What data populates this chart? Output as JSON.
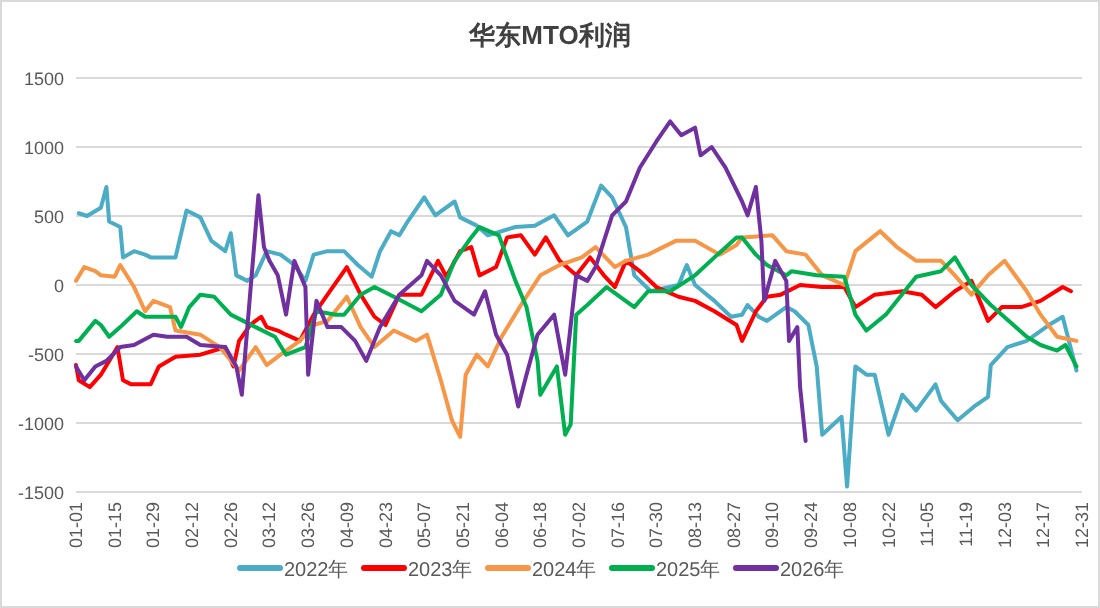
{
  "chart_data": {
    "type": "line",
    "title": "华东MTO利润",
    "grid": "y",
    "legend": "bottom",
    "xlim": [
      "--01-01",
      "--12-31"
    ],
    "xticks": [
      {
        "value": "--01-01",
        "label": "01-01"
      },
      {
        "value": "--01-15",
        "label": "01-15"
      },
      {
        "value": "--01-29",
        "label": "01-29"
      },
      {
        "value": "--02-12",
        "label": "02-12"
      },
      {
        "value": "--02-26",
        "label": "02-26"
      },
      {
        "value": "--03-12",
        "label": "03-12"
      },
      {
        "value": "--03-26",
        "label": "03-26"
      },
      {
        "value": "--04-09",
        "label": "04-09"
      },
      {
        "value": "--04-23",
        "label": "04-23"
      },
      {
        "value": "--05-07",
        "label": "05-07"
      },
      {
        "value": "--05-21",
        "label": "05-21"
      },
      {
        "value": "--06-04",
        "label": "06-04"
      },
      {
        "value": "--06-18",
        "label": "06-18"
      },
      {
        "value": "--07-02",
        "label": "07-02"
      },
      {
        "value": "--07-16",
        "label": "07-16"
      },
      {
        "value": "--07-30",
        "label": "07-30"
      },
      {
        "value": "--08-13",
        "label": "08-13"
      },
      {
        "value": "--08-27",
        "label": "08-27"
      },
      {
        "value": "--09-10",
        "label": "09-10"
      },
      {
        "value": "--09-24",
        "label": "09-24"
      },
      {
        "value": "--10-08",
        "label": "10-08"
      },
      {
        "value": "--10-22",
        "label": "10-22"
      },
      {
        "value": "--11-05",
        "label": "11-05"
      },
      {
        "value": "--11-19",
        "label": "11-19"
      },
      {
        "value": "--12-03",
        "label": "12-03"
      },
      {
        "value": "--12-17",
        "label": "12-17"
      },
      {
        "value": "--12-31",
        "label": "12-31"
      }
    ],
    "ylim": [
      -1500,
      1500
    ],
    "yticks": [
      -1500,
      -1000,
      -500,
      0,
      500,
      1000,
      1500
    ],
    "series": [
      {
        "name": "2022年",
        "color": "#4bacc6",
        "x": [
          "--01-02",
          "--01-05",
          "--01-10",
          "--01-12",
          "--01-13",
          "--01-17",
          "--01-18",
          "--01-22",
          "--01-26",
          "--01-28",
          "--02-06",
          "--02-10",
          "--02-15",
          "--02-19",
          "--02-24",
          "--02-26",
          "--02-28",
          "--03-04",
          "--03-07",
          "--03-11",
          "--03-16",
          "--03-21",
          "--03-25",
          "--03-28",
          "--04-02",
          "--04-08",
          "--04-13",
          "--04-18",
          "--04-21",
          "--04-25",
          "--04-28",
          "--05-01",
          "--05-07",
          "--05-11",
          "--05-18",
          "--05-20",
          "--05-26",
          "--05-30",
          "--06-09",
          "--06-16",
          "--06-23",
          "--06-28",
          "--07-05",
          "--07-10",
          "--07-14",
          "--07-19",
          "--07-22",
          "--07-28",
          "--08-07",
          "--08-10",
          "--08-13",
          "--08-20",
          "--08-26",
          "--08-30",
          "--09-01",
          "--09-05",
          "--09-08",
          "--09-15",
          "--09-18",
          "--09-23",
          "--09-26",
          "--09-28",
          "--10-05",
          "--10-07",
          "--10-10",
          "--10-14",
          "--10-17",
          "--10-22",
          "--10-27",
          "--11-01",
          "--11-08",
          "--11-10",
          "--11-16",
          "--11-22",
          "--11-27",
          "--11-28",
          "--12-04",
          "--12-11",
          "--12-19",
          "--12-24",
          "--12-29"
        ],
        "values": [
          520,
          500,
          560,
          710,
          460,
          420,
          200,
          245,
          220,
          200,
          200,
          540,
          490,
          320,
          245,
          375,
          70,
          30,
          70,
          245,
          220,
          145,
          30,
          220,
          245,
          245,
          145,
          60,
          245,
          390,
          360,
          460,
          635,
          505,
          605,
          490,
          430,
          360,
          420,
          430,
          505,
          360,
          460,
          720,
          635,
          420,
          70,
          -45,
          0,
          145,
          0,
          -115,
          -230,
          -215,
          -145,
          -230,
          -260,
          -160,
          -190,
          -290,
          -590,
          -1085,
          -955,
          -1460,
          -590,
          -650,
          -650,
          -1085,
          -795,
          -910,
          -720,
          -840,
          -980,
          -880,
          -810,
          -580,
          -450,
          -405,
          -290,
          -230,
          -620
        ]
      },
      {
        "name": "2023年",
        "color": "#ff0000",
        "x": [
          "--01-01",
          "--01-02",
          "--01-06",
          "--01-10",
          "--01-16",
          "--01-18",
          "--01-21",
          "--01-28",
          "--01-31",
          "--02-06",
          "--02-15",
          "--02-20",
          "--02-24",
          "--02-27",
          "--03-01",
          "--03-05",
          "--03-09",
          "--03-11",
          "--03-15",
          "--03-18",
          "--03-23",
          "--03-28",
          "--04-02",
          "--04-09",
          "--04-14",
          "--04-19",
          "--04-23",
          "--04-28",
          "--05-06",
          "--05-12",
          "--05-15",
          "--05-20",
          "--05-24",
          "--05-27",
          "--06-02",
          "--06-06",
          "--06-11",
          "--06-16",
          "--06-20",
          "--06-25",
          "--07-01",
          "--07-06",
          "--07-11",
          "--07-15",
          "--07-19",
          "--07-24",
          "--07-30",
          "--08-07",
          "--08-13",
          "--08-20",
          "--08-28",
          "--08-30",
          "--09-04",
          "--09-08",
          "--09-13",
          "--09-20",
          "--09-28",
          "--10-06",
          "--10-10",
          "--10-17",
          "--10-27",
          "--11-03",
          "--11-08",
          "--11-15",
          "--11-21",
          "--11-27",
          "--12-02",
          "--12-09",
          "--12-16",
          "--12-24",
          "--12-27"
        ],
        "values": [
          -580,
          -690,
          -740,
          -650,
          -450,
          -690,
          -720,
          -720,
          -590,
          -520,
          -505,
          -475,
          -450,
          -590,
          -405,
          -290,
          -230,
          -305,
          -330,
          -360,
          -405,
          -215,
          -70,
          130,
          -70,
          -230,
          -290,
          -70,
          -70,
          175,
          60,
          245,
          275,
          70,
          130,
          345,
          360,
          220,
          345,
          175,
          70,
          200,
          70,
          -15,
          175,
          100,
          -15,
          -85,
          -115,
          -190,
          -290,
          -405,
          -190,
          -85,
          -70,
          0,
          -15,
          -15,
          -160,
          -70,
          -45,
          -70,
          -160,
          -45,
          30,
          -260,
          -160,
          -160,
          -115,
          -15,
          -45
        ]
      },
      {
        "name": "2024年",
        "color": "#f79646",
        "x": [
          "--01-01",
          "--01-04",
          "--01-08",
          "--01-10",
          "--01-15",
          "--01-17",
          "--01-22",
          "--01-26",
          "--01-29",
          "--02-04",
          "--02-06",
          "--02-15",
          "--02-22",
          "--03-01",
          "--03-07",
          "--03-11",
          "--03-16",
          "--03-23",
          "--03-28",
          "--04-02",
          "--04-09",
          "--04-14",
          "--04-19",
          "--04-26",
          "--05-04",
          "--05-08",
          "--05-13",
          "--05-17",
          "--05-20",
          "--05-22",
          "--05-26",
          "--05-30",
          "--06-04",
          "--06-11",
          "--06-18",
          "--06-25",
          "--07-03",
          "--07-08",
          "--07-15",
          "--07-19",
          "--07-27",
          "--08-06",
          "--08-13",
          "--08-22",
          "--08-28",
          "--08-30",
          "--09-10",
          "--09-15",
          "--09-22",
          "--09-28",
          "--10-06",
          "--10-10",
          "--10-19",
          "--10-25",
          "--11-01",
          "--11-10",
          "--11-15",
          "--11-21",
          "--11-27",
          "--12-03",
          "--12-11",
          "--12-16",
          "--12-22",
          "--12-29"
        ],
        "values": [
          30,
          130,
          100,
          70,
          60,
          145,
          -15,
          -190,
          -115,
          -160,
          -330,
          -360,
          -450,
          -620,
          -450,
          -580,
          -505,
          -405,
          -290,
          -260,
          -85,
          -305,
          -450,
          -330,
          -405,
          -360,
          -690,
          -980,
          -1100,
          -650,
          -505,
          -590,
          -375,
          -145,
          70,
          145,
          200,
          275,
          130,
          175,
          220,
          320,
          320,
          220,
          290,
          345,
          360,
          245,
          220,
          70,
          0,
          245,
          390,
          275,
          175,
          175,
          70,
          -70,
          70,
          175,
          -45,
          -215,
          -375,
          -405
        ]
      },
      {
        "name": "2025年",
        "color": "#00b050",
        "x": [
          "--01-01",
          "--01-02",
          "--01-08",
          "--01-10",
          "--01-13",
          "--01-17",
          "--01-23",
          "--01-26",
          "--02-06",
          "--02-08",
          "--02-11",
          "--02-15",
          "--02-20",
          "--02-26",
          "--03-07",
          "--03-14",
          "--03-18",
          "--03-25",
          "--03-29",
          "--04-05",
          "--04-08",
          "--04-14",
          "--04-19",
          "--04-26",
          "--05-06",
          "--05-13",
          "--05-18",
          "--05-24",
          "--05-27",
          "--06-03",
          "--06-09",
          "--06-13",
          "--06-17",
          "--06-18",
          "--06-24",
          "--06-27",
          "--06-29",
          "--07-01",
          "--07-05",
          "--07-12",
          "--07-22",
          "--07-27",
          "--08-04",
          "--08-13",
          "--08-20",
          "--08-28",
          "--08-30",
          "--09-04",
          "--09-08",
          "--09-15",
          "--09-17",
          "--09-26",
          "--10-06",
          "--10-10",
          "--10-14",
          "--10-21",
          "--11-01",
          "--11-10",
          "--11-15",
          "--11-21",
          "--11-28",
          "--12-07",
          "--12-11",
          "--12-16",
          "--12-22",
          "--12-25",
          "--12-29"
        ],
        "values": [
          -405,
          -405,
          -260,
          -290,
          -375,
          -305,
          -190,
          -230,
          -230,
          -305,
          -160,
          -70,
          -85,
          -215,
          -305,
          -375,
          -505,
          -450,
          -190,
          -215,
          -215,
          -70,
          -15,
          -85,
          -190,
          -70,
          175,
          345,
          420,
          360,
          30,
          -160,
          -550,
          -795,
          -590,
          -1085,
          -1010,
          -215,
          -145,
          -15,
          -160,
          -45,
          -45,
          70,
          200,
          345,
          345,
          220,
          145,
          70,
          100,
          70,
          60,
          -215,
          -330,
          -215,
          60,
          100,
          200,
          0,
          -145,
          -305,
          -375,
          -435,
          -475,
          -435,
          -590
        ]
      },
      {
        "name": "2026年",
        "color": "#7030a0",
        "x": [
          "--01-01",
          "--01-04",
          "--01-08",
          "--01-12",
          "--01-17",
          "--01-22",
          "--01-29",
          "--02-03",
          "--02-10",
          "--02-15",
          "--02-24",
          "--02-28",
          "--03-02",
          "--03-04",
          "--03-08",
          "--03-10",
          "--03-12",
          "--03-15",
          "--03-18",
          "--03-21",
          "--03-25",
          "--03-26",
          "--03-29",
          "--04-02",
          "--04-07",
          "--04-12",
          "--04-16",
          "--04-21",
          "--04-28",
          "--05-06",
          "--05-08",
          "--05-13",
          "--05-18",
          "--05-25",
          "--05-29",
          "--06-02",
          "--06-06",
          "--06-10",
          "--06-13",
          "--06-17",
          "--06-23",
          "--06-27",
          "--07-01",
          "--07-05",
          "--07-08",
          "--07-14",
          "--07-19",
          "--07-24",
          "--07-30",
          "--08-04",
          "--08-08",
          "--08-13",
          "--08-15",
          "--08-19",
          "--08-24",
          "--08-30",
          "--09-01",
          "--09-04",
          "--09-06",
          "--09-07",
          "--09-11",
          "--09-15",
          "--09-16",
          "--09-19",
          "--09-20",
          "--09-22"
        ],
        "values": [
          -590,
          -690,
          -590,
          -550,
          -450,
          -435,
          -360,
          -375,
          -375,
          -435,
          -450,
          -590,
          -795,
          -305,
          650,
          275,
          175,
          70,
          -215,
          175,
          -15,
          -650,
          -115,
          -305,
          -305,
          -405,
          -550,
          -305,
          -70,
          70,
          175,
          70,
          -115,
          -215,
          -45,
          -360,
          -505,
          -880,
          -650,
          -360,
          -215,
          -650,
          70,
          30,
          130,
          505,
          605,
          850,
          1040,
          1185,
          1085,
          1140,
          940,
          1000,
          850,
          605,
          505,
          710,
          320,
          -115,
          175,
          30,
          -405,
          -305,
          -740,
          -1130
        ]
      }
    ]
  }
}
